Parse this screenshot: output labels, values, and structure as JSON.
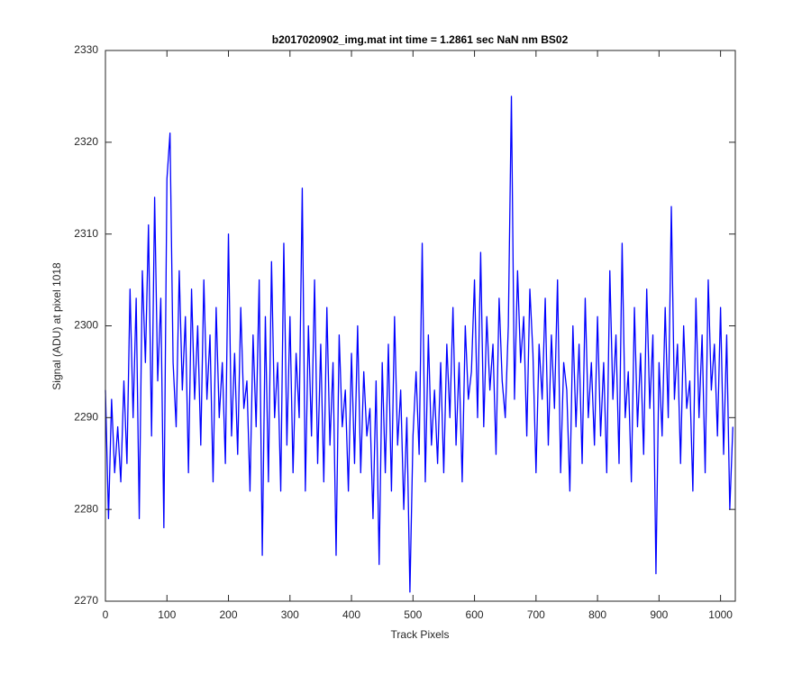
{
  "chart_data": {
    "type": "line",
    "title": "b2017020902_img.mat int time = 1.2861 sec  NaN nm BS02",
    "x_label": "Track Pixels",
    "y_label": "Signal (ADU) at pixel 1018",
    "xlim": [
      0,
      1024
    ],
    "ylim": [
      2270,
      2330
    ],
    "xticks": [
      0,
      100,
      200,
      300,
      400,
      500,
      600,
      700,
      800,
      900,
      1000
    ],
    "yticks": [
      2270,
      2280,
      2290,
      2300,
      2310,
      2320,
      2330
    ],
    "grid": false,
    "x": [
      0,
      5,
      10,
      15,
      20,
      25,
      30,
      35,
      40,
      45,
      50,
      55,
      60,
      65,
      70,
      75,
      80,
      85,
      90,
      95,
      100,
      105,
      110,
      115,
      120,
      125,
      130,
      135,
      140,
      145,
      150,
      155,
      160,
      165,
      170,
      175,
      180,
      185,
      190,
      195,
      200,
      205,
      210,
      215,
      220,
      225,
      230,
      235,
      240,
      245,
      250,
      255,
      260,
      265,
      270,
      275,
      280,
      285,
      290,
      295,
      300,
      305,
      310,
      315,
      320,
      325,
      330,
      335,
      340,
      345,
      350,
      355,
      360,
      365,
      370,
      375,
      380,
      385,
      390,
      395,
      400,
      405,
      410,
      415,
      420,
      425,
      430,
      435,
      440,
      445,
      450,
      455,
      460,
      465,
      470,
      475,
      480,
      485,
      490,
      495,
      500,
      505,
      510,
      515,
      520,
      525,
      530,
      535,
      540,
      545,
      550,
      555,
      560,
      565,
      570,
      575,
      580,
      585,
      590,
      595,
      600,
      605,
      610,
      615,
      620,
      625,
      630,
      635,
      640,
      645,
      650,
      655,
      660,
      665,
      670,
      675,
      680,
      685,
      690,
      695,
      700,
      705,
      710,
      715,
      720,
      725,
      730,
      735,
      740,
      745,
      750,
      755,
      760,
      765,
      770,
      775,
      780,
      785,
      790,
      795,
      800,
      805,
      810,
      815,
      820,
      825,
      830,
      835,
      840,
      845,
      850,
      855,
      860,
      865,
      870,
      875,
      880,
      885,
      890,
      895,
      900,
      905,
      910,
      915,
      920,
      925,
      930,
      935,
      940,
      945,
      950,
      955,
      960,
      965,
      970,
      975,
      980,
      985,
      990,
      995,
      1000,
      1005,
      1010,
      1015,
      1020
    ],
    "series": [
      {
        "color": "#0000ff",
        "values": [
          2293,
          2279,
          2292,
          2284,
          2289,
          2283,
          2294,
          2285,
          2304,
          2290,
          2303,
          2279,
          2306,
          2296,
          2311,
          2288,
          2314,
          2294,
          2303,
          2278,
          2316,
          2321,
          2296,
          2289,
          2306,
          2293,
          2301,
          2284,
          2304,
          2292,
          2300,
          2287,
          2305,
          2292,
          2299,
          2283,
          2302,
          2290,
          2296,
          2285,
          2310,
          2288,
          2297,
          2286,
          2302,
          2291,
          2294,
          2282,
          2299,
          2289,
          2305,
          2275,
          2301,
          2283,
          2307,
          2290,
          2296,
          2282,
          2309,
          2287,
          2301,
          2284,
          2297,
          2290,
          2315,
          2282,
          2300,
          2288,
          2305,
          2285,
          2298,
          2283,
          2302,
          2287,
          2296,
          2275,
          2299,
          2289,
          2293,
          2282,
          2297,
          2285,
          2300,
          2284,
          2295,
          2288,
          2291,
          2279,
          2294,
          2274,
          2296,
          2284,
          2298,
          2282,
          2301,
          2287,
          2293,
          2280,
          2290,
          2271,
          2288,
          2295,
          2286,
          2309,
          2283,
          2299,
          2287,
          2293,
          2285,
          2296,
          2284,
          2298,
          2290,
          2302,
          2287,
          2296,
          2283,
          2300,
          2292,
          2295,
          2305,
          2290,
          2308,
          2289,
          2301,
          2293,
          2298,
          2286,
          2303,
          2294,
          2290,
          2300,
          2325,
          2292,
          2306,
          2296,
          2301,
          2288,
          2304,
          2297,
          2284,
          2298,
          2292,
          2303,
          2287,
          2299,
          2291,
          2305,
          2284,
          2296,
          2293,
          2282,
          2300,
          2289,
          2298,
          2285,
          2303,
          2290,
          2296,
          2287,
          2301,
          2288,
          2296,
          2284,
          2306,
          2292,
          2299,
          2285,
          2309,
          2290,
          2295,
          2283,
          2302,
          2289,
          2297,
          2286,
          2304,
          2291,
          2299,
          2273,
          2296,
          2288,
          2302,
          2290,
          2313,
          2292,
          2298,
          2285,
          2300,
          2291,
          2294,
          2282,
          2303,
          2290,
          2299,
          2284,
          2305,
          2293,
          2298,
          2288,
          2302,
          2286,
          2299,
          2280,
          2289
        ]
      }
    ]
  }
}
